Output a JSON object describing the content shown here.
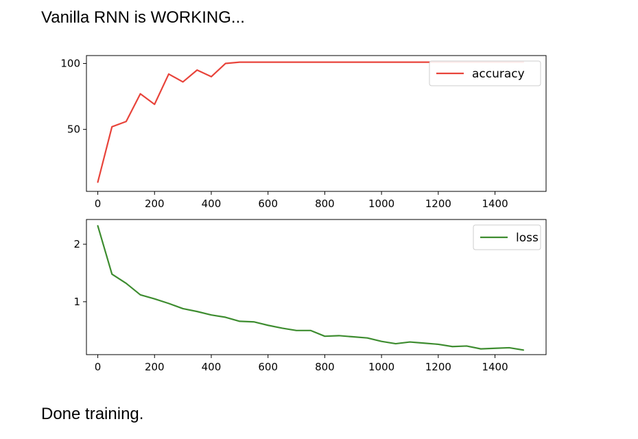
{
  "header_text": "Vanilla RNN is WORKING...",
  "footer_text": "Done training.",
  "chart_data": [
    {
      "type": "line",
      "xlim": [
        -40,
        1580
      ],
      "ylim": [
        3,
        106
      ],
      "xticks": [
        0,
        200,
        400,
        600,
        800,
        1000,
        1200,
        1400
      ],
      "yticks": [
        50,
        100
      ],
      "grid": false,
      "legend_position": "top-right",
      "series": [
        {
          "name": "accuracy",
          "color": "#e8433a",
          "x": [
            0,
            50,
            100,
            150,
            200,
            250,
            300,
            350,
            400,
            450,
            500,
            550,
            600,
            650,
            700,
            750,
            800,
            850,
            900,
            950,
            1000,
            1050,
            1100,
            1150,
            1200,
            1250,
            1300,
            1350,
            1400,
            1450,
            1500
          ],
          "y": [
            10,
            52,
            56,
            77,
            69,
            92,
            86,
            95,
            90,
            100,
            101,
            101,
            101,
            101,
            101,
            101,
            101,
            101,
            101,
            101,
            101,
            101,
            101,
            101,
            101,
            101,
            101,
            101,
            101,
            101,
            101
          ]
        }
      ]
    },
    {
      "type": "line",
      "xlim": [
        -40,
        1580
      ],
      "ylim": [
        0.08,
        2.43
      ],
      "xticks": [
        0,
        200,
        400,
        600,
        800,
        1000,
        1200,
        1400
      ],
      "yticks": [
        1,
        2
      ],
      "grid": false,
      "legend_position": "top-right",
      "series": [
        {
          "name": "loss",
          "color": "#3d8c2f",
          "x": [
            0,
            50,
            100,
            150,
            200,
            250,
            300,
            350,
            400,
            450,
            500,
            550,
            600,
            650,
            700,
            750,
            800,
            850,
            900,
            950,
            1000,
            1050,
            1100,
            1150,
            1200,
            1250,
            1300,
            1350,
            1400,
            1450,
            1500
          ],
          "y": [
            2.32,
            1.48,
            1.32,
            1.12,
            1.05,
            0.97,
            0.88,
            0.83,
            0.77,
            0.73,
            0.66,
            0.65,
            0.59,
            0.54,
            0.5,
            0.5,
            0.4,
            0.41,
            0.39,
            0.37,
            0.31,
            0.27,
            0.3,
            0.28,
            0.26,
            0.22,
            0.23,
            0.18,
            0.19,
            0.2,
            0.16
          ]
        }
      ]
    }
  ]
}
